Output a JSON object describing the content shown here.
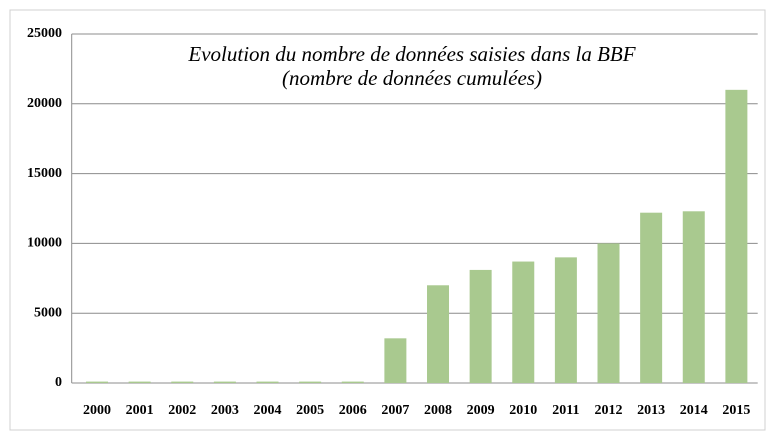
{
  "chart_data": {
    "type": "bar",
    "title": "Evolution du nombre de données saisies dans la BBF",
    "subtitle": "(nombre de données cumulées)",
    "categories": [
      "2000",
      "2001",
      "2002",
      "2003",
      "2004",
      "2005",
      "2006",
      "2007",
      "2008",
      "2009",
      "2010",
      "2011",
      "2012",
      "2013",
      "2014",
      "2015"
    ],
    "values": [
      100,
      100,
      100,
      100,
      100,
      100,
      100,
      3200,
      7000,
      8100,
      8700,
      9000,
      10000,
      12200,
      12300,
      21000
    ],
    "color": "#a9c98f",
    "ylim": [
      0,
      25000
    ],
    "yticks": [
      0,
      5000,
      10000,
      15000,
      20000,
      25000
    ],
    "grid": true
  }
}
